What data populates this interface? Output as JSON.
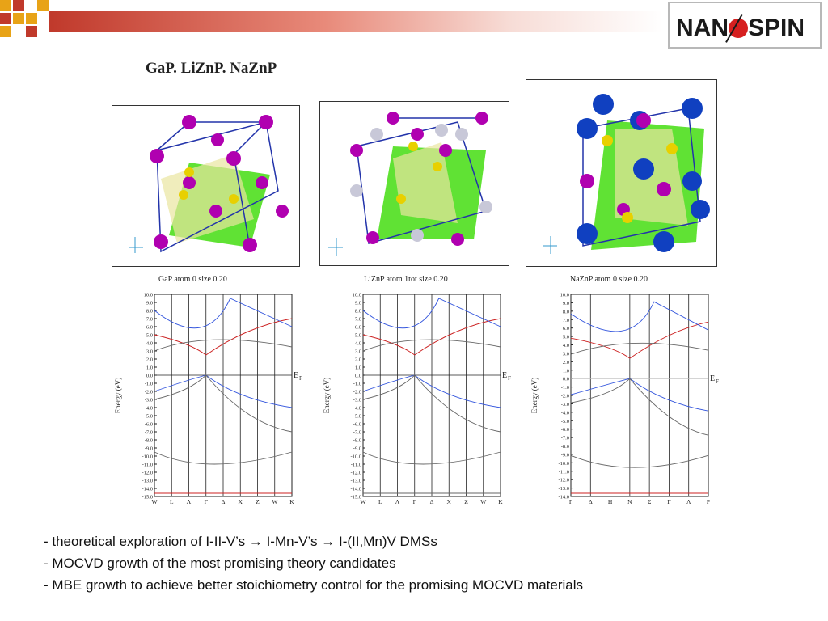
{
  "header": {
    "logo_text": "NANOSPIN",
    "logo_before": "NAN",
    "logo_after": "SPIN"
  },
  "slide": {
    "title": "GaP. LiZnP. NaZnP"
  },
  "structures": [
    {
      "caption": "GaP atom  0    size 0.20"
    },
    {
      "caption": "LiZnP atom  1tot  size 0.20"
    },
    {
      "caption": "NaZnP atom  0    size 0.20"
    }
  ],
  "band_plots": [
    {
      "ylabel": "Energy (eV)",
      "fermi": "E",
      "fermi_sub": "F",
      "yticks": [
        "10.0",
        "9.0",
        "8.0",
        "7.0",
        "6.0",
        "5.0",
        "4.0",
        "3.0",
        "2.0",
        "1.0",
        "0.0",
        "-1.0",
        "-2.0",
        "-3.0",
        "-4.0",
        "-5.0",
        "-6.0",
        "-7.0",
        "-8.0",
        "-9.0",
        "-10.0",
        "-11.0",
        "-12.0",
        "-13.0",
        "-14.0",
        "-15.0"
      ],
      "xticks": [
        "W",
        "L",
        "Λ",
        "Γ",
        "Δ",
        "X",
        "Z",
        "W",
        "K"
      ]
    },
    {
      "ylabel": "Energy (eV)",
      "fermi": "E",
      "fermi_sub": "F",
      "yticks": [
        "10.0",
        "9.0",
        "8.0",
        "7.0",
        "6.0",
        "5.0",
        "4.0",
        "3.0",
        "2.0",
        "1.0",
        "0.0",
        "-1.0",
        "-2.0",
        "-3.0",
        "-4.0",
        "-5.0",
        "-6.0",
        "-7.0",
        "-8.0",
        "-9.0",
        "-10.0",
        "-11.0",
        "-12.0",
        "-13.0",
        "-14.0",
        "-15.0"
      ],
      "xticks": [
        "W",
        "L",
        "Λ",
        "Γ",
        "Δ",
        "X",
        "Z",
        "W",
        "K"
      ]
    },
    {
      "ylabel": "Energy (eV)",
      "fermi": "E",
      "fermi_sub": "F",
      "yticks": [
        "10.0",
        "9.0",
        "8.0",
        "7.0",
        "6.0",
        "5.0",
        "4.0",
        "3.0",
        "2.0",
        "1.0",
        "0.0",
        "-1.0",
        "-2.0",
        "-3.0",
        "-4.0",
        "-5.0",
        "-6.0",
        "-7.0",
        "-8.0",
        "-9.0",
        "-10.0",
        "-11.0",
        "-12.0",
        "-13.0",
        "-14.0"
      ],
      "xticks": [
        "Γ",
        "Δ",
        "H",
        "N",
        "Σ",
        "Γ",
        "Λ",
        "P"
      ]
    }
  ],
  "bullets": [
    "- theoretical exploration of I-II-V’s → I-Mn-V’s  → I-(II,Mn)V DMSs",
    "- MOCVD growth of the most promising theory candidates",
    "- MBE growth to achieve better stoichiometry control for the  promising MOCVD materials"
  ],
  "colors": {
    "accent": "#c0392b",
    "gold": "#e8a317",
    "atom_magenta": "#b000b0",
    "atom_blue": "#1040c0",
    "surface_green": "#33cc00"
  }
}
